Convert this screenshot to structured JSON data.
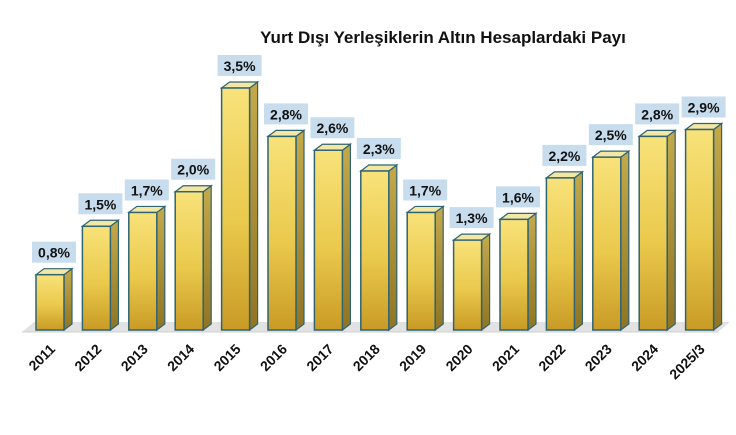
{
  "chart_data": {
    "type": "bar",
    "title": "Yurt Dışı Yerleşiklerin Altın Hesaplardaki Payı",
    "categories": [
      "2011",
      "2012",
      "2013",
      "2014",
      "2015",
      "2016",
      "2017",
      "2018",
      "2019",
      "2020",
      "2021",
      "2022",
      "2023",
      "2024",
      "2025/3"
    ],
    "values": [
      0.8,
      1.5,
      1.7,
      2.0,
      3.5,
      2.8,
      2.6,
      2.3,
      1.7,
      1.3,
      1.6,
      2.2,
      2.5,
      2.8,
      2.9
    ],
    "data_labels": [
      "0,8%",
      "1,5%",
      "1,7%",
      "2,0%",
      "3,5%",
      "2,8%",
      "2,6%",
      "2,3%",
      "1,7%",
      "1,3%",
      "1,6%",
      "2,2%",
      "2,5%",
      "2,8%",
      "2,9%"
    ],
    "unit": "%",
    "ylim": [
      0,
      3.5
    ],
    "grid": false,
    "legend": "none",
    "style": "3d-column",
    "colors": {
      "bar_light": "#f8e27a",
      "bar_mid": "#eac94c",
      "bar_dark": "#c99b26",
      "bar_side": "#a58a3a",
      "bar_top": "#f4e7a4",
      "bar_outline": "#2f6472",
      "label_bg": "#c7dced",
      "floor": "#e2e2e2",
      "wall": "#f3f3f3"
    }
  }
}
